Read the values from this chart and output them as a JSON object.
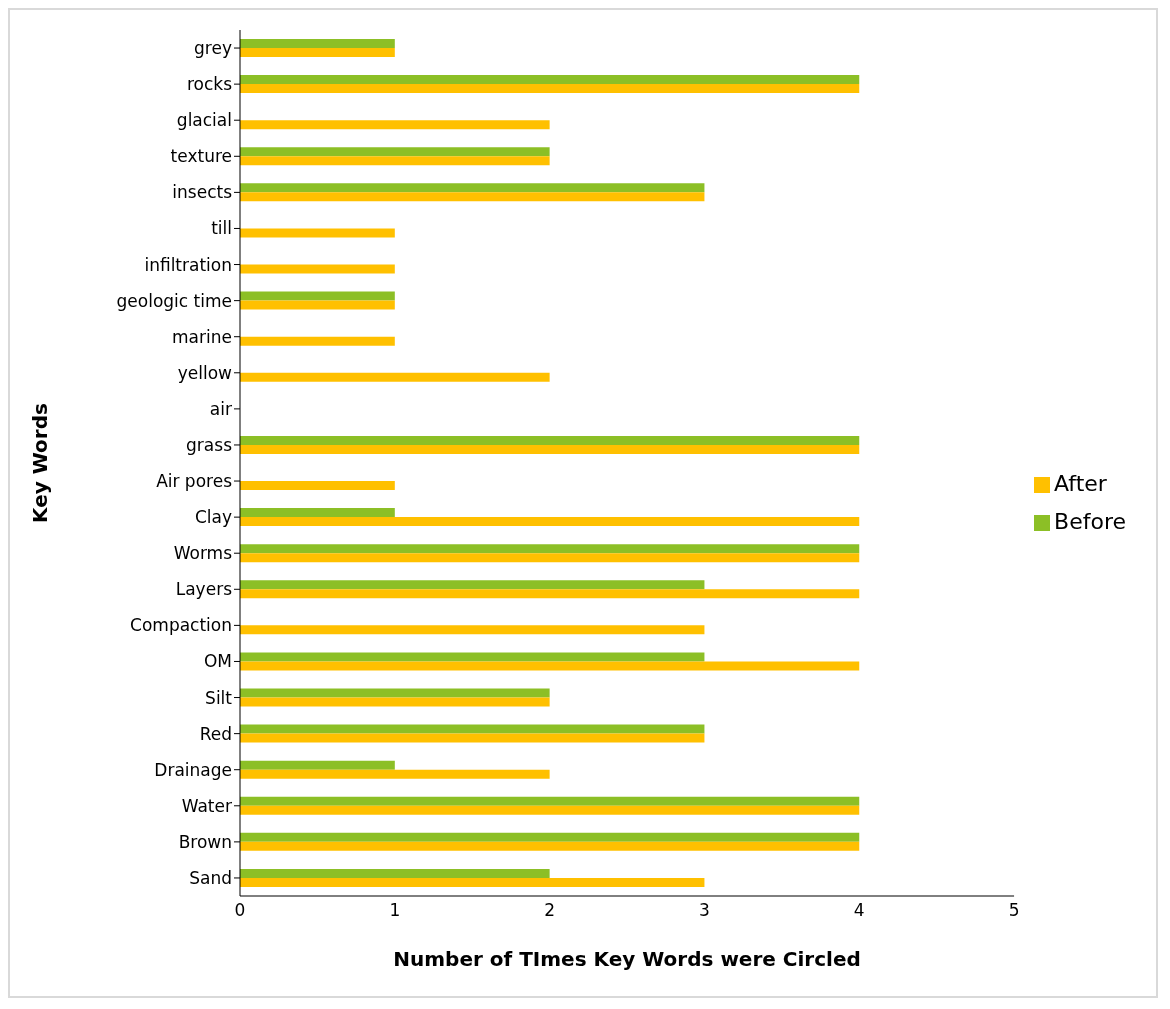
{
  "chart_data": {
    "type": "bar",
    "orientation": "horizontal",
    "xlabel": "Number of TImes Key Words were Circled",
    "ylabel": "Key Words",
    "categories": [
      "grey",
      "rocks",
      "glacial",
      "texture",
      "insects",
      "till",
      "infiltration",
      "geologic time",
      "marine",
      "yellow",
      "air",
      "grass",
      "Air pores",
      "Clay",
      "Worms",
      "Layers",
      "Compaction",
      "OM",
      "Silt",
      "Red",
      "Drainage",
      "Water",
      "Brown",
      "Sand"
    ],
    "series": [
      {
        "name": "Before",
        "color": "#8cbf26",
        "values": [
          1,
          4,
          0,
          2,
          3,
          0,
          0,
          1,
          0,
          0,
          0,
          4,
          0,
          1,
          4,
          3,
          0,
          3,
          2,
          3,
          1,
          4,
          4,
          2
        ]
      },
      {
        "name": "After",
        "color": "#ffc000",
        "values": [
          1,
          4,
          2,
          2,
          3,
          1,
          1,
          1,
          1,
          2,
          0,
          4,
          1,
          4,
          4,
          4,
          3,
          4,
          2,
          3,
          2,
          4,
          4,
          3
        ]
      }
    ],
    "xlim": [
      0,
      5
    ],
    "xticks": [
      0,
      1,
      2,
      3,
      4,
      5
    ],
    "grid": false,
    "legend": "right"
  }
}
